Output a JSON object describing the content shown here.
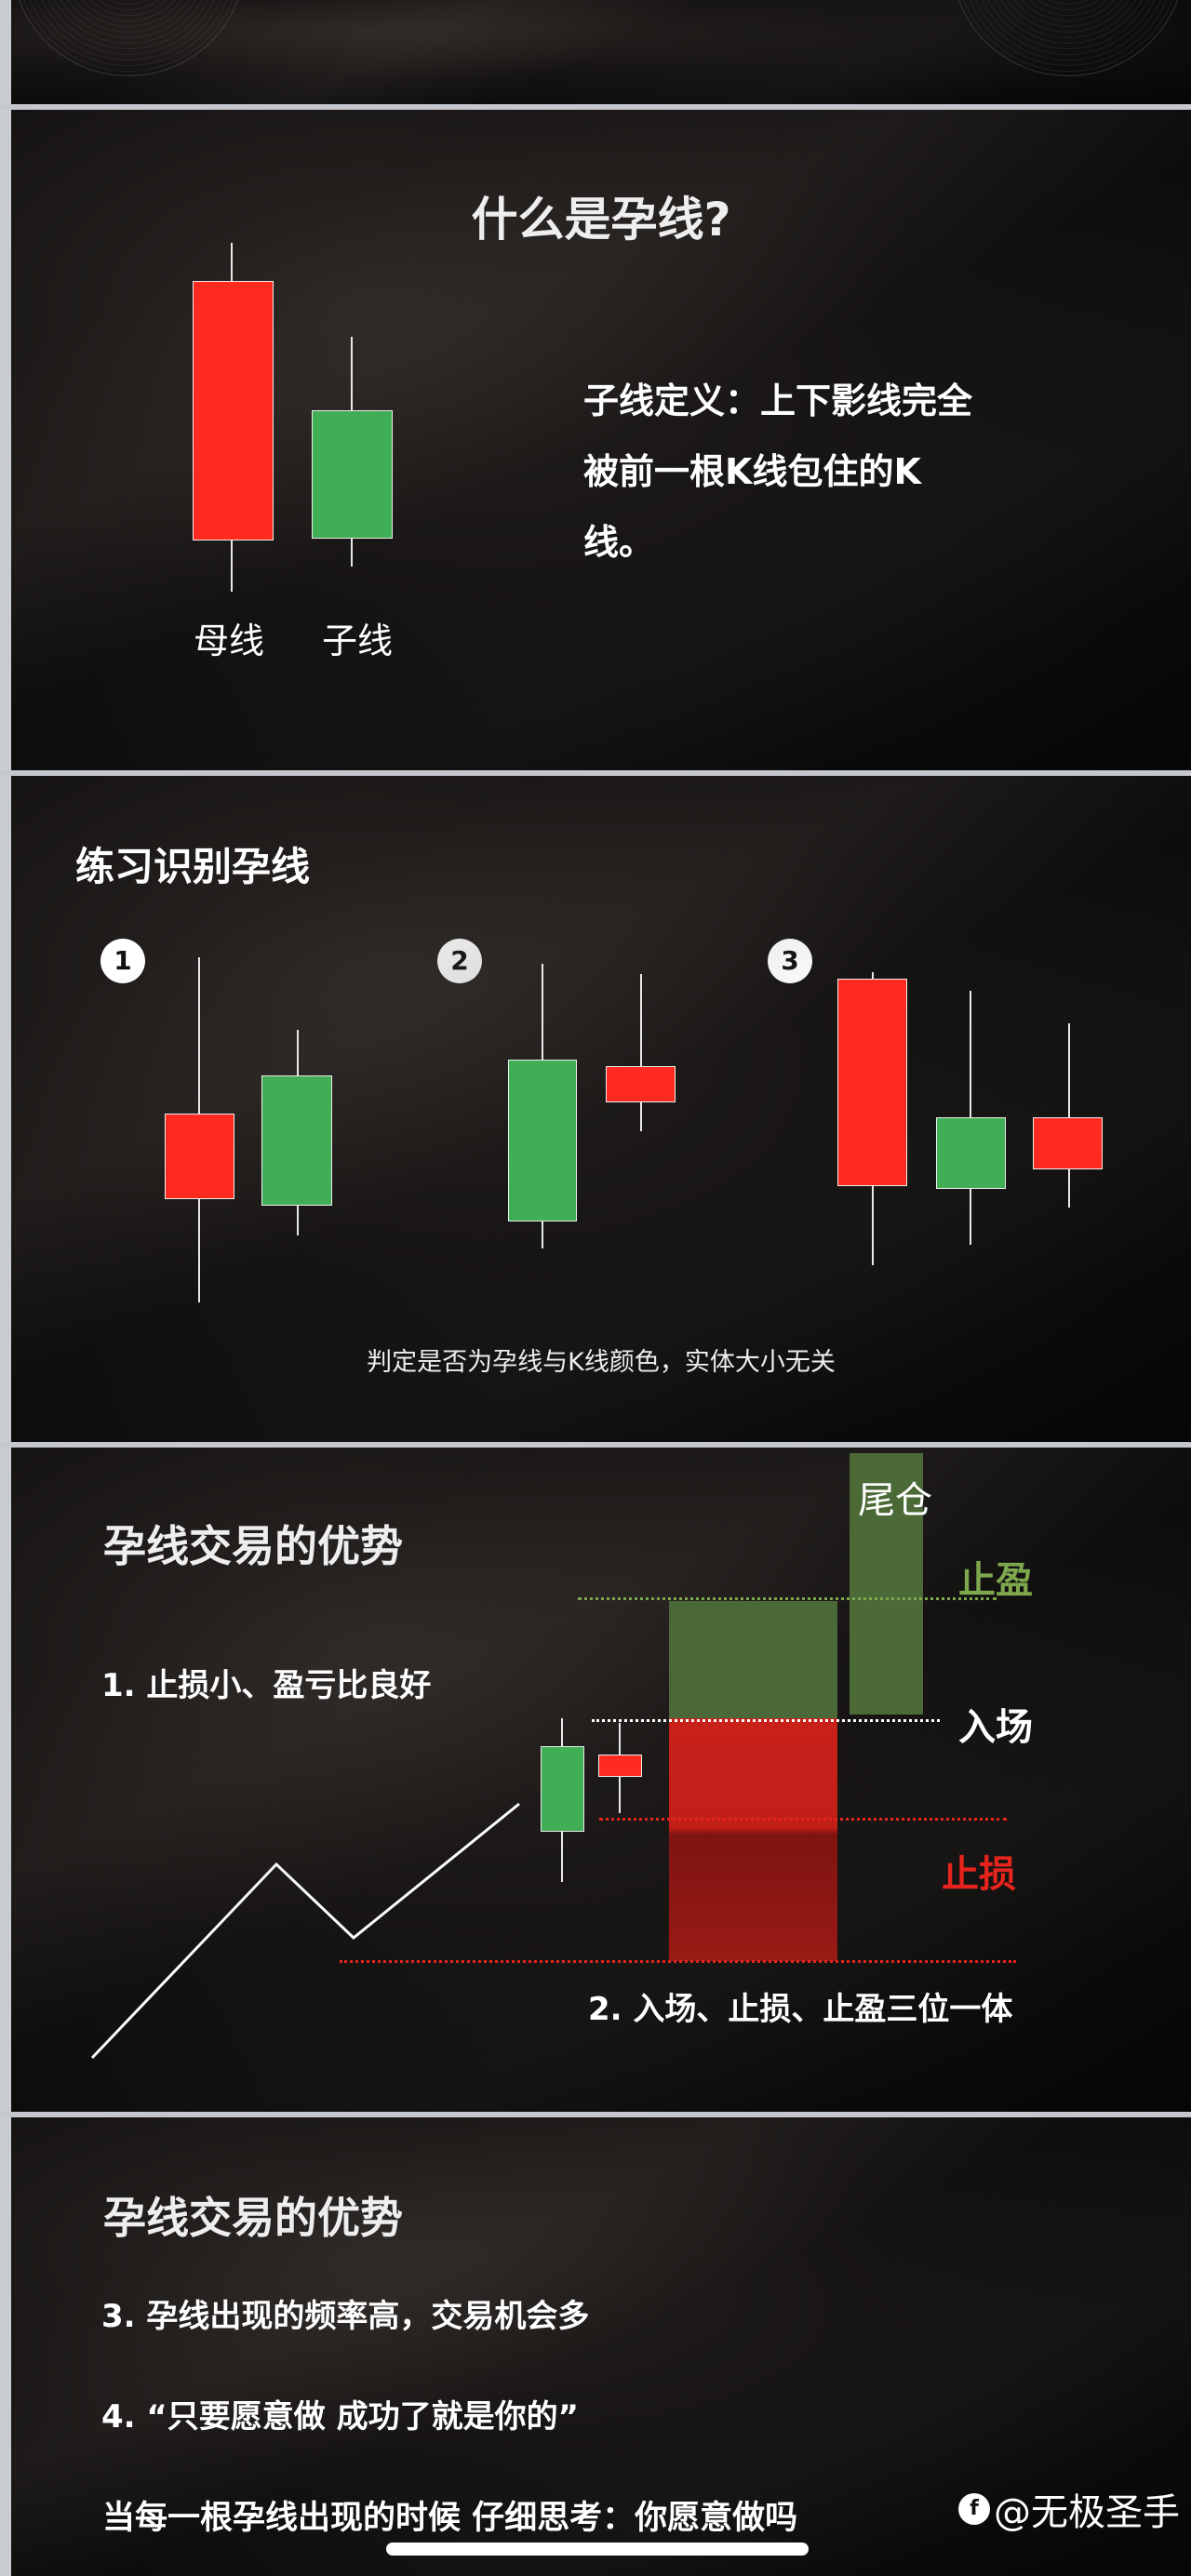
{
  "slide1": {
    "title": "什么是孕线?",
    "mother_label": "母线",
    "child_label": "子线",
    "definition": [
      "子线定义：上下影线完全",
      "被前一根K线包住的K",
      "线。"
    ]
  },
  "slide2": {
    "title": "练习识别孕线",
    "markers": [
      "1",
      "2",
      "3"
    ],
    "caption": "判定是否为孕线与K线颜色，实体大小无关"
  },
  "slide3": {
    "title": "孕线交易的优势",
    "point1": "1. 止损小、盈亏比良好",
    "point2": "2. 入场、止损、止盈三位一体",
    "tail_label": "尾仓",
    "take_profit_label": "止盈",
    "entry_label": "入场",
    "stop_loss_label": "止损"
  },
  "slide4": {
    "title": "孕线交易的优势",
    "point3": "3. 孕线出现的频率高，交易机会多",
    "point4": "4. “只要愿意做 成功了就是你的”",
    "subtitle": "当每一根孕线出现的时候 仔细思考：你愿意做吗",
    "watermark": "@无极圣手"
  },
  "colors": {
    "bull": "#3fae55",
    "bear": "#ff2b20",
    "take_profit": "#7ea84e",
    "stop_loss": "#e6241c"
  }
}
